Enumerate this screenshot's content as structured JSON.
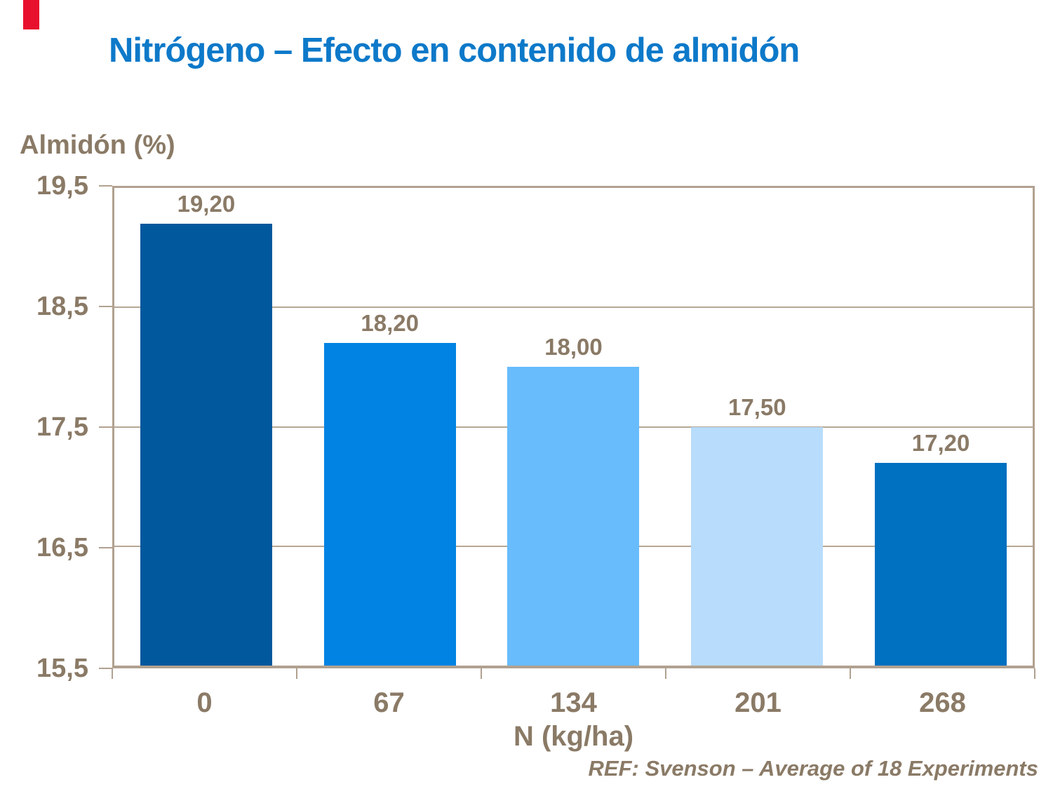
{
  "slide": {
    "title": "Nitrógeno – Efecto en contenido de almidón"
  },
  "colors": {
    "accent_red": "#E8112D",
    "title_blue": "#0D79C9",
    "text_brown": "#8A7A66",
    "axis_tan": "#B1A190",
    "grid_tan": "#B6A795"
  },
  "chart_data": {
    "type": "bar",
    "title": "Nitrógeno – Efecto en contenido de almidón",
    "xlabel": "N (kg/ha)",
    "ylabel": "Almidón (%)",
    "categories": [
      "0",
      "67",
      "134",
      "201",
      "268"
    ],
    "values": [
      19.2,
      18.2,
      18.0,
      17.5,
      17.2
    ],
    "value_labels": [
      "19,20",
      "18,20",
      "18,00",
      "17,50",
      "17,20"
    ],
    "bar_colors": [
      "#02589D",
      "#0083E3",
      "#68BCFB",
      "#B8DCFB",
      "#0070C0"
    ],
    "ylim": [
      15.5,
      19.5
    ],
    "ytick_values": [
      19.5,
      18.5,
      17.5,
      16.5,
      15.5
    ],
    "ytick_labels": [
      "19,5",
      "18,5",
      "17,5",
      "16,5",
      "15,5"
    ],
    "grid": true,
    "legend": false
  },
  "footer": {
    "ref": "REF: Svenson – Average of 18 Experiments"
  }
}
